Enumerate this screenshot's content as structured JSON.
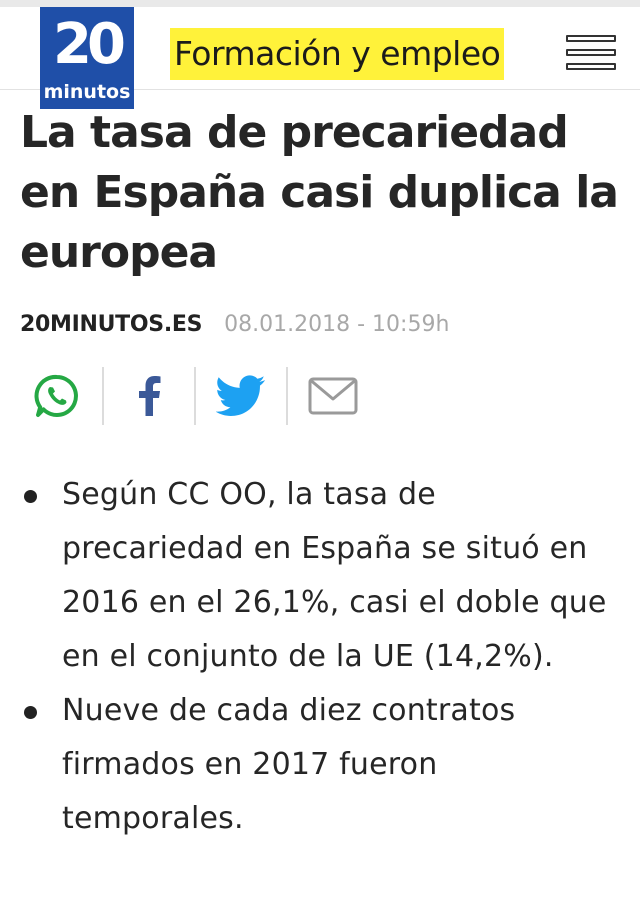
{
  "header": {
    "logo_number": "20",
    "logo_word": "minutos",
    "section_label": "Formación y empleo",
    "menu_icon": "hamburger-menu-icon"
  },
  "article": {
    "headline": "La tasa de precariedad en España casi duplica la europea",
    "source": "20MINUTOS.ES",
    "datetime": "08.01.2018 - 10:59h"
  },
  "share": {
    "icons": [
      "whatsapp-icon",
      "facebook-icon",
      "twitter-icon",
      "email-icon"
    ],
    "colors": {
      "whatsapp": "#25a844",
      "facebook": "#3b5998",
      "twitter": "#1da1f2",
      "email": "#9a9a9a"
    }
  },
  "bullets": [
    "Según CC OO, la tasa de precariedad en España se situó en 2016 en el 26,1%, casi el doble que en el conjunto de la UE (14,2%).",
    "Nueve de cada diez contratos firmados en 2017 fueron temporales."
  ],
  "colors": {
    "brand_blue": "#1f4fa8",
    "section_highlight": "#fff23a"
  }
}
